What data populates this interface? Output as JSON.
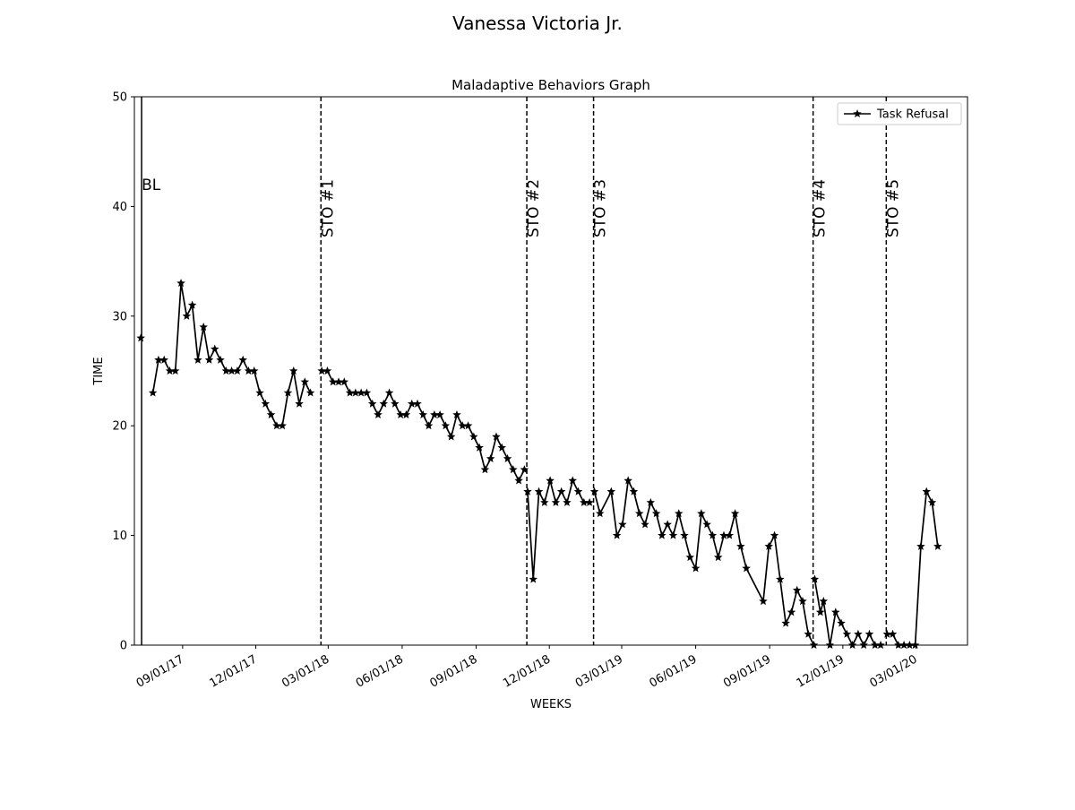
{
  "figure_title": "Vanessa Victoria  Jr.",
  "chart_data": {
    "type": "line",
    "title": "Maladaptive Behaviors Graph",
    "xlabel": "WEEKS",
    "ylabel": "TIME",
    "ylim": [
      0,
      50
    ],
    "xlim": [
      "2017-07-03",
      "2020-05-04"
    ],
    "yticks": [
      0,
      10,
      20,
      30,
      40,
      50
    ],
    "xticks": [
      {
        "date": "2017-09-01",
        "label": "09/01/17"
      },
      {
        "date": "2017-12-01",
        "label": "12/01/17"
      },
      {
        "date": "2018-03-01",
        "label": "03/01/18"
      },
      {
        "date": "2018-06-01",
        "label": "06/01/18"
      },
      {
        "date": "2018-09-01",
        "label": "09/01/18"
      },
      {
        "date": "2018-12-01",
        "label": "12/01/18"
      },
      {
        "date": "2019-03-01",
        "label": "03/01/19"
      },
      {
        "date": "2019-06-01",
        "label": "06/01/19"
      },
      {
        "date": "2019-09-01",
        "label": "09/01/19"
      },
      {
        "date": "2019-12-01",
        "label": "12/01/19"
      },
      {
        "date": "2020-03-01",
        "label": "03/01/20"
      }
    ],
    "grid": false,
    "legend_position": "top-right",
    "phase_lines": [
      {
        "date": "2017-07-12",
        "label": "BL",
        "style": "solid"
      },
      {
        "date": "2018-02-20",
        "label": "STO #1",
        "style": "dashed"
      },
      {
        "date": "2018-11-03",
        "label": "STO #2",
        "style": "dashed"
      },
      {
        "date": "2019-01-25",
        "label": "STO #3",
        "style": "dashed"
      },
      {
        "date": "2019-10-25",
        "label": "STO #4",
        "style": "dashed"
      },
      {
        "date": "2020-01-24",
        "label": "STO #5",
        "style": "dashed"
      }
    ],
    "series": [
      {
        "name": "Task Refusal",
        "color": "#000000",
        "marker": "star",
        "segments": [
          [
            {
              "x": "2017-07-11",
              "y": 28
            }
          ],
          [
            {
              "x": "2017-07-26",
              "y": 23
            },
            {
              "x": "2017-08-02",
              "y": 26
            },
            {
              "x": "2017-08-09",
              "y": 26
            },
            {
              "x": "2017-08-16",
              "y": 25
            },
            {
              "x": "2017-08-23",
              "y": 25
            },
            {
              "x": "2017-08-30",
              "y": 33
            },
            {
              "x": "2017-09-06",
              "y": 30
            },
            {
              "x": "2017-09-13",
              "y": 31
            },
            {
              "x": "2017-09-20",
              "y": 26
            },
            {
              "x": "2017-09-27",
              "y": 29
            },
            {
              "x": "2017-10-04",
              "y": 26
            },
            {
              "x": "2017-10-11",
              "y": 27
            },
            {
              "x": "2017-10-18",
              "y": 26
            },
            {
              "x": "2017-10-25",
              "y": 25
            },
            {
              "x": "2017-11-01",
              "y": 25
            },
            {
              "x": "2017-11-08",
              "y": 25
            },
            {
              "x": "2017-11-15",
              "y": 26
            },
            {
              "x": "2017-11-22",
              "y": 25
            },
            {
              "x": "2017-11-29",
              "y": 25
            },
            {
              "x": "2017-12-06",
              "y": 23
            },
            {
              "x": "2017-12-13",
              "y": 22
            },
            {
              "x": "2017-12-20",
              "y": 21
            },
            {
              "x": "2017-12-27",
              "y": 20
            },
            {
              "x": "2018-01-03",
              "y": 20
            },
            {
              "x": "2018-01-10",
              "y": 23
            },
            {
              "x": "2018-01-17",
              "y": 25
            },
            {
              "x": "2018-01-24",
              "y": 22
            },
            {
              "x": "2018-01-31",
              "y": 24
            },
            {
              "x": "2018-02-07",
              "y": 23
            }
          ],
          [
            {
              "x": "2018-02-21",
              "y": 25
            },
            {
              "x": "2018-02-28",
              "y": 25
            },
            {
              "x": "2018-03-07",
              "y": 24
            },
            {
              "x": "2018-03-14",
              "y": 24
            },
            {
              "x": "2018-03-21",
              "y": 24
            },
            {
              "x": "2018-03-28",
              "y": 23
            },
            {
              "x": "2018-04-04",
              "y": 23
            },
            {
              "x": "2018-04-11",
              "y": 23
            },
            {
              "x": "2018-04-18",
              "y": 23
            },
            {
              "x": "2018-04-25",
              "y": 22
            },
            {
              "x": "2018-05-02",
              "y": 21
            },
            {
              "x": "2018-05-09",
              "y": 22
            },
            {
              "x": "2018-05-16",
              "y": 23
            },
            {
              "x": "2018-05-23",
              "y": 22
            },
            {
              "x": "2018-05-30",
              "y": 21
            },
            {
              "x": "2018-06-06",
              "y": 21
            },
            {
              "x": "2018-06-13",
              "y": 22
            },
            {
              "x": "2018-06-20",
              "y": 22
            },
            {
              "x": "2018-06-27",
              "y": 21
            },
            {
              "x": "2018-07-04",
              "y": 20
            },
            {
              "x": "2018-07-11",
              "y": 21
            },
            {
              "x": "2018-07-18",
              "y": 21
            },
            {
              "x": "2018-07-25",
              "y": 20
            },
            {
              "x": "2018-08-01",
              "y": 19
            },
            {
              "x": "2018-08-08",
              "y": 21
            },
            {
              "x": "2018-08-15",
              "y": 20
            },
            {
              "x": "2018-08-22",
              "y": 20
            },
            {
              "x": "2018-08-29",
              "y": 19
            },
            {
              "x": "2018-09-05",
              "y": 18
            },
            {
              "x": "2018-09-12",
              "y": 16
            },
            {
              "x": "2018-09-19",
              "y": 17
            },
            {
              "x": "2018-09-26",
              "y": 19
            },
            {
              "x": "2018-10-03",
              "y": 18
            },
            {
              "x": "2018-10-10",
              "y": 17
            },
            {
              "x": "2018-10-17",
              "y": 16
            },
            {
              "x": "2018-10-24",
              "y": 15
            },
            {
              "x": "2018-10-31",
              "y": 16
            }
          ],
          [
            {
              "x": "2018-11-04",
              "y": 14
            },
            {
              "x": "2018-11-11",
              "y": 6
            },
            {
              "x": "2018-11-18",
              "y": 14
            },
            {
              "x": "2018-11-25",
              "y": 13
            },
            {
              "x": "2018-12-02",
              "y": 15
            },
            {
              "x": "2018-12-09",
              "y": 13
            },
            {
              "x": "2018-12-16",
              "y": 14
            },
            {
              "x": "2018-12-23",
              "y": 13
            },
            {
              "x": "2018-12-30",
              "y": 15
            },
            {
              "x": "2019-01-06",
              "y": 14
            },
            {
              "x": "2019-01-13",
              "y": 13
            },
            {
              "x": "2019-01-20",
              "y": 13
            }
          ],
          [
            {
              "x": "2019-01-26",
              "y": 14
            },
            {
              "x": "2019-02-02",
              "y": 12
            },
            {
              "x": "2019-02-16",
              "y": 14
            },
            {
              "x": "2019-02-23",
              "y": 10
            },
            {
              "x": "2019-03-02",
              "y": 11
            },
            {
              "x": "2019-03-09",
              "y": 15
            },
            {
              "x": "2019-03-16",
              "y": 14
            },
            {
              "x": "2019-03-23",
              "y": 12
            },
            {
              "x": "2019-03-30",
              "y": 11
            },
            {
              "x": "2019-04-06",
              "y": 13
            },
            {
              "x": "2019-04-13",
              "y": 12
            },
            {
              "x": "2019-04-20",
              "y": 10
            },
            {
              "x": "2019-04-27",
              "y": 11
            },
            {
              "x": "2019-05-04",
              "y": 10
            },
            {
              "x": "2019-05-11",
              "y": 12
            },
            {
              "x": "2019-05-18",
              "y": 10
            },
            {
              "x": "2019-05-25",
              "y": 8
            },
            {
              "x": "2019-06-01",
              "y": 7
            },
            {
              "x": "2019-06-08",
              "y": 12
            },
            {
              "x": "2019-06-15",
              "y": 11
            },
            {
              "x": "2019-06-22",
              "y": 10
            },
            {
              "x": "2019-06-29",
              "y": 8
            },
            {
              "x": "2019-07-06",
              "y": 10
            },
            {
              "x": "2019-07-13",
              "y": 10
            },
            {
              "x": "2019-07-20",
              "y": 12
            },
            {
              "x": "2019-07-27",
              "y": 9
            },
            {
              "x": "2019-08-03",
              "y": 7
            },
            {
              "x": "2019-08-24",
              "y": 4
            },
            {
              "x": "2019-08-31",
              "y": 9
            },
            {
              "x": "2019-09-07",
              "y": 10
            },
            {
              "x": "2019-09-14",
              "y": 6
            },
            {
              "x": "2019-09-21",
              "y": 2
            },
            {
              "x": "2019-09-28",
              "y": 3
            },
            {
              "x": "2019-10-05",
              "y": 5
            },
            {
              "x": "2019-10-12",
              "y": 4
            },
            {
              "x": "2019-10-19",
              "y": 1
            },
            {
              "x": "2019-10-26",
              "y": 0
            }
          ],
          [
            {
              "x": "2019-10-27",
              "y": 6
            },
            {
              "x": "2019-11-03",
              "y": 3
            },
            {
              "x": "2019-11-07",
              "y": 4
            },
            {
              "x": "2019-11-15",
              "y": 0
            },
            {
              "x": "2019-11-22",
              "y": 3
            },
            {
              "x": "2019-11-29",
              "y": 2
            },
            {
              "x": "2019-12-06",
              "y": 1
            },
            {
              "x": "2019-12-13",
              "y": 0
            },
            {
              "x": "2019-12-20",
              "y": 1
            },
            {
              "x": "2019-12-27",
              "y": 0
            },
            {
              "x": "2020-01-03",
              "y": 1
            },
            {
              "x": "2020-01-10",
              "y": 0
            },
            {
              "x": "2020-01-17",
              "y": 0
            }
          ],
          [
            {
              "x": "2020-01-25",
              "y": 1
            },
            {
              "x": "2020-02-01",
              "y": 1
            },
            {
              "x": "2020-02-08",
              "y": 0
            },
            {
              "x": "2020-02-15",
              "y": 0
            },
            {
              "x": "2020-02-22",
              "y": 0
            },
            {
              "x": "2020-02-29",
              "y": 0
            },
            {
              "x": "2020-03-07",
              "y": 9
            },
            {
              "x": "2020-03-14",
              "y": 14
            },
            {
              "x": "2020-03-21",
              "y": 13
            },
            {
              "x": "2020-03-28",
              "y": 9
            }
          ]
        ]
      }
    ]
  }
}
